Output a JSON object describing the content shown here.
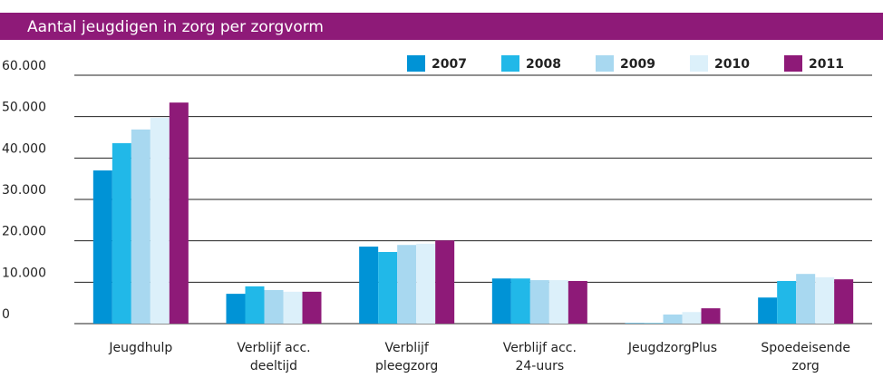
{
  "chart_data": {
    "type": "bar",
    "title": "Aantal jeugdigen in zorg per zorgvorm",
    "categories": [
      "Jeugdhulp",
      "Verblijf acc.\ndeeltijd",
      "Verblijf\npleegzorg",
      "Verblijf acc.\n24-uurs",
      "JeugdzorgPlus",
      "Spoedeisende\nzorg"
    ],
    "series": [
      {
        "name": "2007",
        "color": "#0093d6",
        "values": [
          37000,
          7200,
          18600,
          10900,
          100,
          6300
        ]
      },
      {
        "name": "2008",
        "color": "#21b8e8",
        "values": [
          43600,
          9000,
          17300,
          10900,
          100,
          10300
        ]
      },
      {
        "name": "2009",
        "color": "#a8d8f0",
        "values": [
          46900,
          8100,
          19000,
          10500,
          2200,
          12000
        ]
      },
      {
        "name": "2010",
        "color": "#dcf0fa",
        "values": [
          49700,
          7700,
          19300,
          10500,
          2800,
          11200
        ]
      },
      {
        "name": "2011",
        "color": "#8e1a78",
        "values": [
          53400,
          7700,
          20100,
          10300,
          3700,
          10700
        ]
      }
    ],
    "ylim": [
      0,
      60000
    ],
    "yticks": [
      0,
      {
        "value": 10000,
        "label": "10.000"
      },
      {
        "value": 20000,
        "label": "20.000"
      },
      {
        "value": 30000,
        "label": "30.000"
      },
      {
        "value": 40000,
        "label": "40.000"
      },
      {
        "value": 50000,
        "label": "50.000"
      },
      {
        "value": 60000,
        "label": "60.000"
      }
    ],
    "grid": true,
    "legend": "top-right",
    "title_color": "#8e1a78"
  }
}
